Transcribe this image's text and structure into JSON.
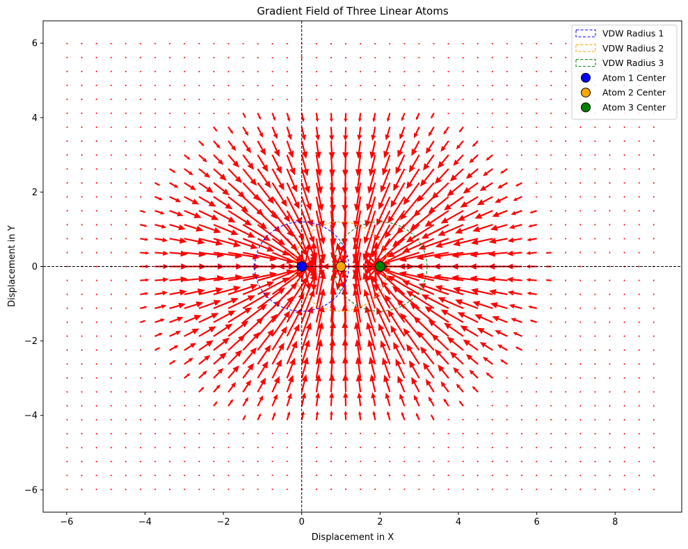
{
  "chart_data": {
    "type": "quiver",
    "title": "Gradient Field of Three Linear Atoms",
    "xlabel": "Displacement in X",
    "ylabel": "Displacement in Y",
    "xlim": [
      -6.6,
      9.7
    ],
    "ylim": [
      -6.6,
      6.6
    ],
    "xticks": [
      -6,
      -4,
      -2,
      0,
      2,
      4,
      6,
      8
    ],
    "yticks": [
      -6,
      -4,
      -2,
      0,
      2,
      4,
      6
    ],
    "xtick_labels": [
      "−6",
      "−4",
      "−2",
      "0",
      "2",
      "4",
      "6",
      "8"
    ],
    "ytick_labels": [
      "−6",
      "−4",
      "−2",
      "0",
      "2",
      "4",
      "6"
    ],
    "grid": false,
    "reference_lines": {
      "x": 0,
      "y": 0,
      "style": "dashed",
      "color": "#000000"
    },
    "field": {
      "color": "#ff0000",
      "x_range": [
        -6,
        9
      ],
      "y_range": [
        -6,
        6
      ],
      "spacing": 0.375,
      "direction": "toward atom centers"
    },
    "atoms": [
      {
        "name": "Atom 1 Center",
        "x": 0,
        "y": 0,
        "vdw_radius": 1.2,
        "color": "#0000ff",
        "radius_label": "VDW Radius 1"
      },
      {
        "name": "Atom 2 Center",
        "x": 1,
        "y": 0,
        "vdw_radius": 1.2,
        "color": "#ffa500",
        "radius_label": "VDW Radius 2"
      },
      {
        "name": "Atom 3 Center",
        "x": 2,
        "y": 0,
        "vdw_radius": 1.2,
        "color": "#008000",
        "radius_label": "VDW Radius 3"
      }
    ],
    "legend_position": "top-right",
    "legend": [
      {
        "label": "VDW Radius 1",
        "kind": "circle-outline",
        "color": "#0000ff"
      },
      {
        "label": "VDW Radius 2",
        "kind": "circle-outline",
        "color": "#ffa500"
      },
      {
        "label": "VDW Radius 3",
        "kind": "circle-outline",
        "color": "#008000"
      },
      {
        "label": "Atom 1 Center",
        "kind": "marker",
        "color": "#0000ff"
      },
      {
        "label": "Atom 2 Center",
        "kind": "marker",
        "color": "#ffa500"
      },
      {
        "label": "Atom 3 Center",
        "kind": "marker",
        "color": "#008000"
      }
    ]
  }
}
